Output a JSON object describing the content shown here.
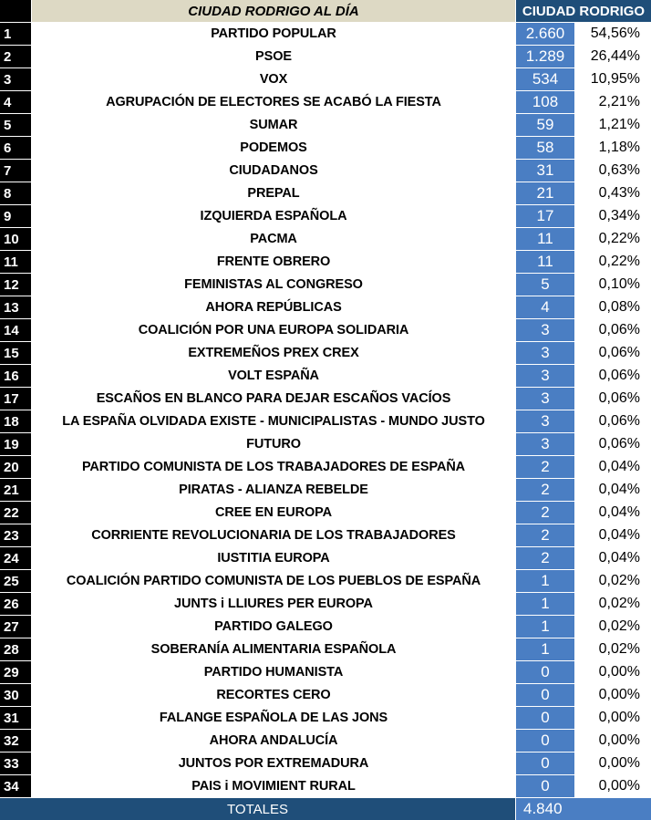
{
  "header": {
    "title": "CIUDAD RODRIGO AL DÍA",
    "city": "CIUDAD RODRIGO"
  },
  "rows": [
    {
      "num": "1",
      "party": "PARTIDO POPULAR",
      "votes": "2.660",
      "pct": "54,56%"
    },
    {
      "num": "2",
      "party": "PSOE",
      "votes": "1.289",
      "pct": "26,44%"
    },
    {
      "num": "3",
      "party": "VOX",
      "votes": "534",
      "pct": "10,95%"
    },
    {
      "num": "4",
      "party": "AGRUPACIÓN DE ELECTORES SE ACABÓ LA FIESTA",
      "votes": "108",
      "pct": "2,21%"
    },
    {
      "num": "5",
      "party": "SUMAR",
      "votes": "59",
      "pct": "1,21%"
    },
    {
      "num": "6",
      "party": "PODEMOS",
      "votes": "58",
      "pct": "1,18%"
    },
    {
      "num": "7",
      "party": "CIUDADANOS",
      "votes": "31",
      "pct": "0,63%"
    },
    {
      "num": "8",
      "party": "PREPAL",
      "votes": "21",
      "pct": "0,43%"
    },
    {
      "num": "9",
      "party": "IZQUIERDA ESPAÑOLA",
      "votes": "17",
      "pct": "0,34%"
    },
    {
      "num": "10",
      "party": "PACMA",
      "votes": "11",
      "pct": "0,22%"
    },
    {
      "num": "11",
      "party": "FRENTE OBRERO",
      "votes": "11",
      "pct": "0,22%"
    },
    {
      "num": "12",
      "party": "FEMINISTAS AL CONGRESO",
      "votes": "5",
      "pct": "0,10%"
    },
    {
      "num": "13",
      "party": "AHORA REPÚBLICAS",
      "votes": "4",
      "pct": "0,08%"
    },
    {
      "num": "14",
      "party": "COALICIÓN POR UNA EUROPA SOLIDARIA",
      "votes": "3",
      "pct": "0,06%"
    },
    {
      "num": "15",
      "party": "EXTREMEÑOS PREX CREX",
      "votes": "3",
      "pct": "0,06%"
    },
    {
      "num": "16",
      "party": "VOLT ESPAÑA",
      "votes": "3",
      "pct": "0,06%"
    },
    {
      "num": "17",
      "party": "ESCAÑOS EN BLANCO PARA DEJAR ESCAÑOS VACÍOS",
      "votes": "3",
      "pct": "0,06%"
    },
    {
      "num": "18",
      "party": "LA ESPAÑA OLVIDADA EXISTE - MUNICIPALISTAS - MUNDO JUSTO",
      "votes": "3",
      "pct": "0,06%"
    },
    {
      "num": "19",
      "party": "FUTURO",
      "votes": "3",
      "pct": "0,06%"
    },
    {
      "num": "20",
      "party": "PARTIDO COMUNISTA DE LOS TRABAJADORES DE ESPAÑA",
      "votes": "2",
      "pct": "0,04%"
    },
    {
      "num": "21",
      "party": "PIRATAS - ALIANZA REBELDE",
      "votes": "2",
      "pct": "0,04%"
    },
    {
      "num": "22",
      "party": "CREE EN EUROPA",
      "votes": "2",
      "pct": "0,04%"
    },
    {
      "num": "23",
      "party": "CORRIENTE REVOLUCIONARIA DE LOS TRABAJADORES",
      "votes": "2",
      "pct": "0,04%"
    },
    {
      "num": "24",
      "party": "IUSTITIA EUROPA",
      "votes": "2",
      "pct": "0,04%"
    },
    {
      "num": "25",
      "party": "COALICIÓN PARTIDO COMUNISTA DE LOS PUEBLOS DE ESPAÑA",
      "votes": "1",
      "pct": "0,02%"
    },
    {
      "num": "26",
      "party": "JUNTS i LLIURES PER EUROPA",
      "votes": "1",
      "pct": "0,02%"
    },
    {
      "num": "27",
      "party": "PARTIDO GALEGO",
      "votes": "1",
      "pct": "0,02%"
    },
    {
      "num": "28",
      "party": "SOBERANÍA ALIMENTARIA ESPAÑOLA",
      "votes": "1",
      "pct": "0,02%"
    },
    {
      "num": "29",
      "party": "PARTIDO HUMANISTA",
      "votes": "0",
      "pct": "0,00%"
    },
    {
      "num": "30",
      "party": "RECORTES CERO",
      "votes": "0",
      "pct": "0,00%"
    },
    {
      "num": "31",
      "party": "FALANGE ESPAÑOLA DE LAS JONS",
      "votes": "0",
      "pct": "0,00%"
    },
    {
      "num": "32",
      "party": "AHORA ANDALUCÍA",
      "votes": "0",
      "pct": "0,00%"
    },
    {
      "num": "33",
      "party": "JUNTOS POR EXTREMADURA",
      "votes": "0",
      "pct": "0,00%"
    },
    {
      "num": "34",
      "party": "PAIS i MOVIMIENT RURAL",
      "votes": "0",
      "pct": "0,00%"
    }
  ],
  "footer": {
    "label": "TOTALES",
    "total": "4.840"
  },
  "colors": {
    "title_bg": "#ddd9c4",
    "header_dark": "#1f4e79",
    "votes_blue": "#4a7ec3",
    "number_bg": "#000000"
  }
}
